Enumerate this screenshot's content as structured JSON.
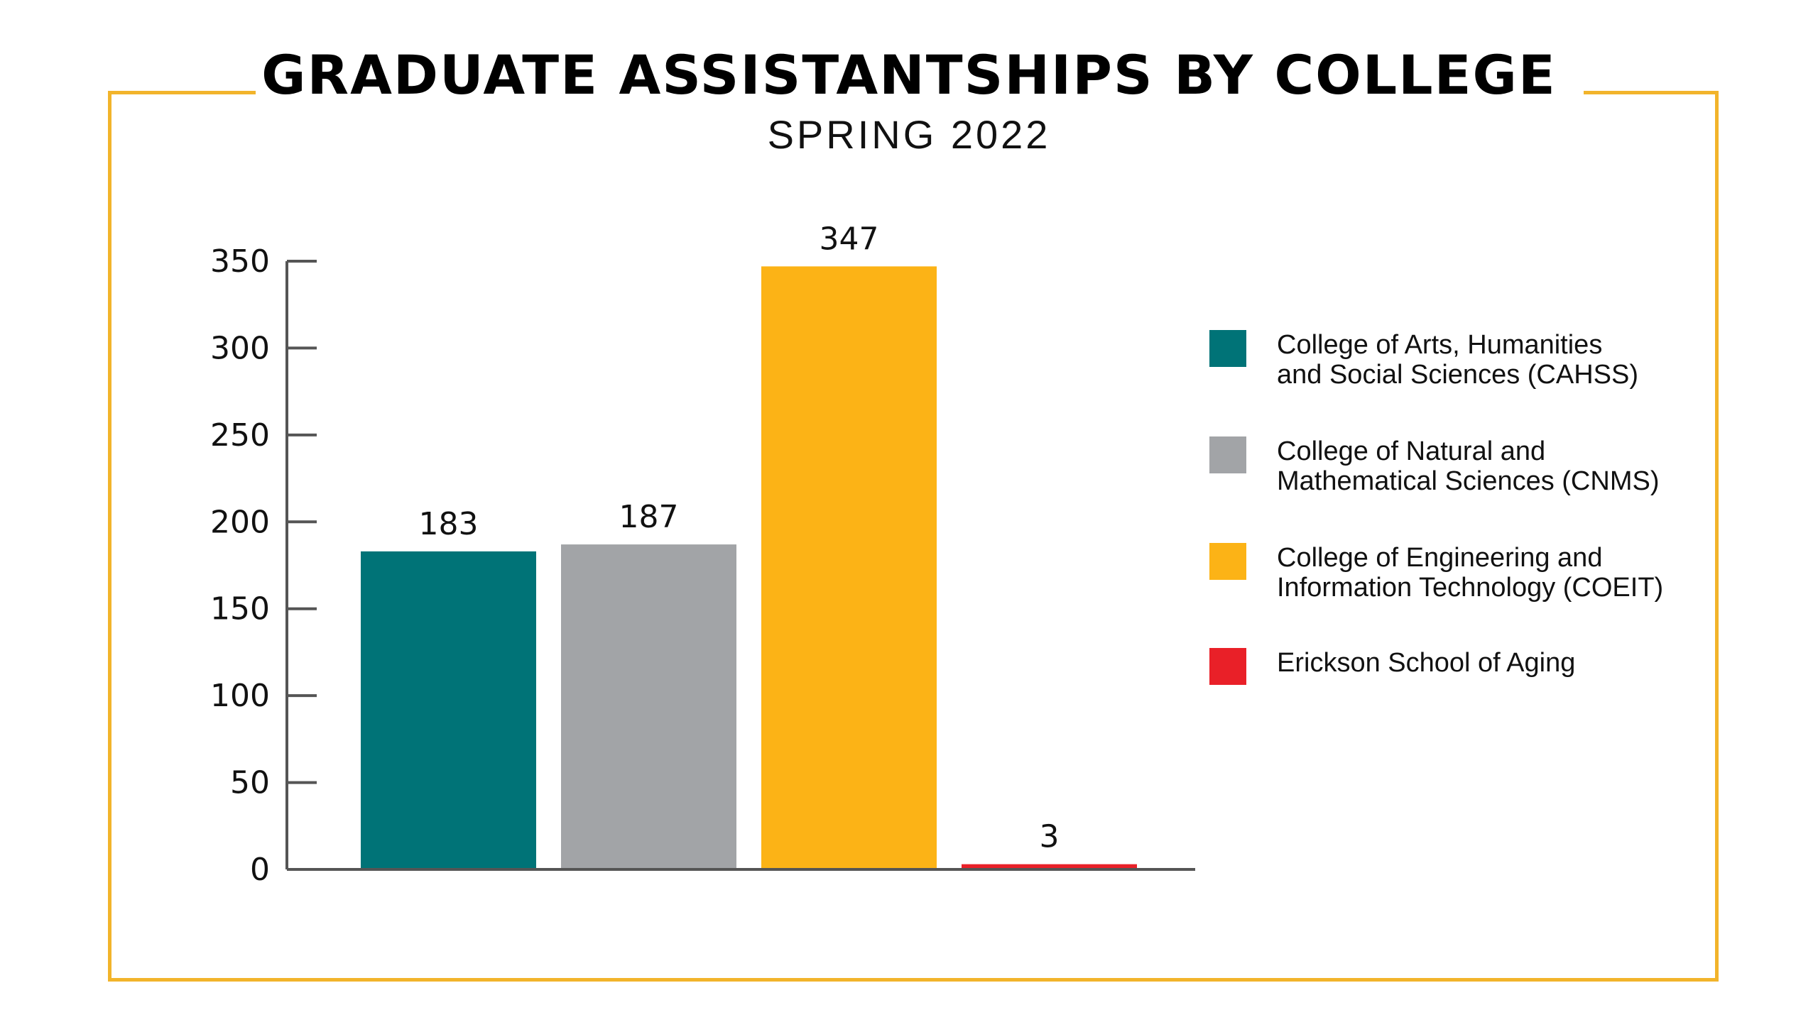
{
  "title": "GRADUATE ASSISTANTSHIPS BY COLLEGE",
  "subtitle": "SPRING 2022",
  "colors": {
    "frame": "#f2b42b",
    "axis": "#555555"
  },
  "chart_data": {
    "type": "bar",
    "title": "GRADUATE ASSISTANTSHIPS BY COLLEGE",
    "subtitle": "SPRING 2022",
    "xlabel": "",
    "ylabel": "",
    "ylim": [
      0,
      350
    ],
    "yticks": [
      0,
      50,
      100,
      150,
      200,
      250,
      300,
      350
    ],
    "grid": false,
    "legend_position": "right",
    "categories": [
      "CAHSS",
      "CNMS",
      "COEIT",
      "Erickson School of Aging"
    ],
    "values": [
      183,
      187,
      347,
      3
    ],
    "series": [
      {
        "name": "College of Arts, Humanities and Social Sciences (CAHSS)",
        "value": 183,
        "color": "#007377"
      },
      {
        "name": "College of Natural and Mathematical Sciences (CNMS)",
        "value": 187,
        "color": "#a2a4a7"
      },
      {
        "name": "College of Engineering and Information Technology (COEIT)",
        "value": 347,
        "color": "#fcb316"
      },
      {
        "name": "Erickson School of Aging",
        "value": 3,
        "color": "#e92028"
      }
    ]
  },
  "legend": [
    {
      "lines": [
        "College of Arts, Humanities",
        "and Social Sciences (CAHSS)"
      ],
      "color": "#007377",
      "icon": "teal-square-swatch"
    },
    {
      "lines": [
        "College of Natural and",
        "Mathematical Sciences (CNMS)"
      ],
      "color": "#a2a4a7",
      "icon": "gray-square-swatch"
    },
    {
      "lines": [
        "College of Engineering and",
        "Information Technology (COEIT)"
      ],
      "color": "#fcb316",
      "icon": "gold-square-swatch"
    },
    {
      "lines": [
        "Erickson School of Aging"
      ],
      "color": "#e92028",
      "icon": "red-square-swatch"
    }
  ]
}
